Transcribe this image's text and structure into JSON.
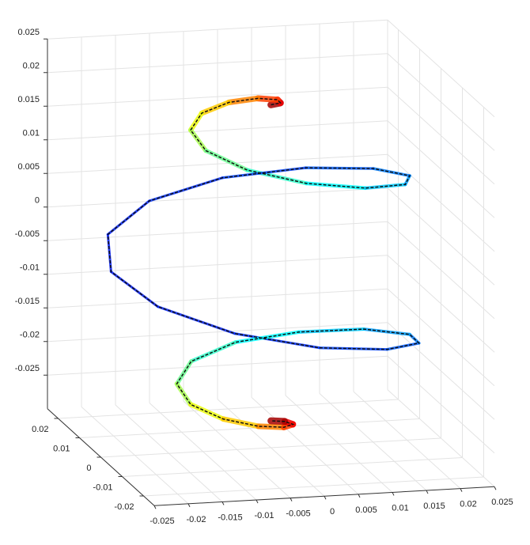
{
  "chart_data": {
    "type": "line3d",
    "colormap": "jet",
    "grid": true,
    "xlim": [
      -0.025,
      0.025
    ],
    "ylim": [
      -0.025,
      0.025
    ],
    "zlim": [
      -0.03,
      0.025
    ],
    "xticks": [
      -0.025,
      -0.02,
      -0.015,
      -0.01,
      -0.005,
      0,
      0.005,
      0.01,
      0.015,
      0.02,
      0.025
    ],
    "yticks": [
      -0.02,
      -0.01,
      0,
      0.01,
      0.02
    ],
    "zticks": [
      -0.025,
      -0.02,
      -0.015,
      -0.01,
      -0.005,
      0,
      0.005,
      0.01,
      0.015,
      0.02,
      0.025
    ],
    "x": [
      0,
      0.0017,
      0.0021,
      0,
      -0.004,
      -0.0086,
      -0.0118,
      -0.0117,
      -0.0076,
      0,
      0.009,
      0.0167,
      0.0204,
      0.0184,
      0.0111,
      0,
      -0.0116,
      -0.0203,
      -0.0235,
      -0.0203,
      -0.0116,
      0,
      0.0111,
      0.0184,
      0.0204,
      0.0167,
      0.009,
      0,
      -0.0076,
      -0.0117,
      -0.0118,
      -0.0086,
      -0.004,
      0,
      0.0021,
      0.0017,
      0
    ],
    "y": [
      0,
      0.001,
      0.0036,
      0.0061,
      0.0069,
      0.005,
      0,
      -0.0068,
      -0.0131,
      -0.0166,
      -0.0156,
      -0.0097,
      0,
      0.0107,
      0.0191,
      0.0227,
      0.02,
      0.0117,
      0,
      -0.0117,
      -0.02,
      -0.0227,
      -0.0191,
      -0.0107,
      0,
      0.0097,
      0.0156,
      0.0166,
      0.0131,
      0.0068,
      0,
      -0.005,
      -0.0069,
      -0.0061,
      -0.0036,
      -0.001,
      0
    ],
    "z": [
      0.021,
      0.0209,
      0.0206,
      0.0202,
      0.0196,
      0.0188,
      0.0179,
      0.0168,
      0.0155,
      0.0141,
      0.0126,
      0.011,
      0.0093,
      0.0074,
      0.0055,
      0.0036,
      0.0016,
      -0.0005,
      -0.0025,
      -0.0045,
      -0.0066,
      -0.0086,
      -0.0105,
      -0.0124,
      -0.0143,
      -0.0161,
      -0.0178,
      -0.0191,
      -0.0205,
      -0.0218,
      -0.0229,
      -0.0238,
      -0.0246,
      -0.0252,
      -0.0256,
      -0.0259,
      -0.026
    ]
  }
}
